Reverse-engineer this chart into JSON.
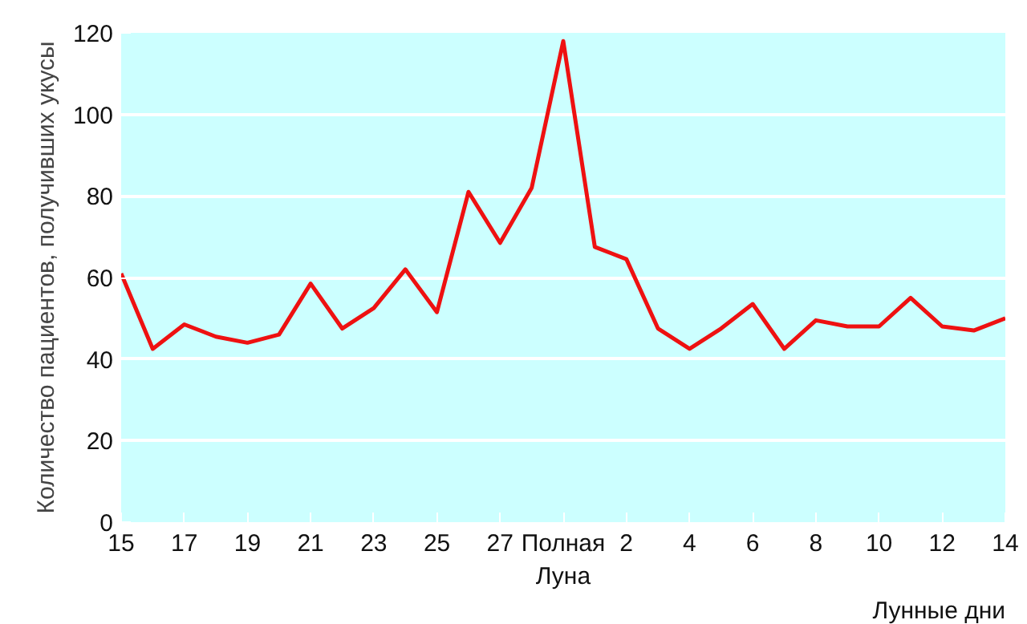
{
  "chart_data": {
    "type": "line",
    "xlabel": "Лунные дни",
    "ylabel": "Количество пациентов, получивших укусы",
    "categories": [
      "15",
      null,
      "17",
      null,
      "19",
      null,
      "21",
      null,
      "23",
      null,
      "25",
      null,
      "27",
      null,
      "Полная\nЛуна",
      null,
      "2",
      null,
      "4",
      null,
      "6",
      null,
      "8",
      null,
      "10",
      null,
      "12",
      null,
      "14"
    ],
    "series": [
      {
        "color": "#ee1111",
        "values": [
          61,
          42.5,
          48.5,
          45.5,
          44,
          46,
          58.5,
          47.5,
          52.5,
          62,
          51.5,
          81,
          68.5,
          82,
          118,
          67.5,
          64.5,
          47.5,
          42.5,
          47.5,
          53.5,
          42.5,
          49.5,
          48,
          48,
          55,
          48,
          47,
          50
        ]
      }
    ],
    "ylim": [
      0,
      120
    ],
    "yticks": [
      0,
      20,
      40,
      60,
      80,
      100,
      120
    ],
    "grid": "y"
  }
}
